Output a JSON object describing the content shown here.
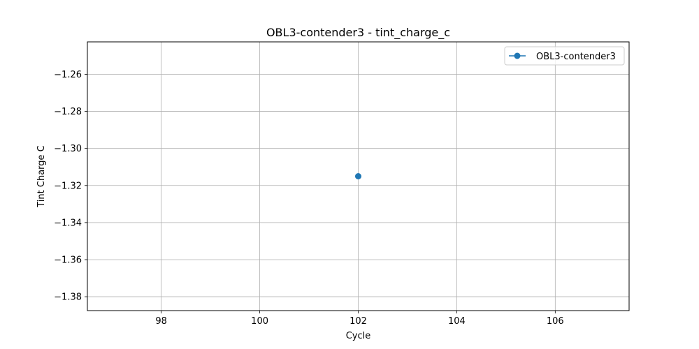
{
  "chart_data": {
    "type": "line",
    "title": "OBL3-contender3 - tint_charge_c",
    "xlabel": "Cycle",
    "ylabel": "Tint Charge C",
    "xlim": [
      96.5,
      107.5
    ],
    "ylim": [
      -1.3875,
      -1.2425
    ],
    "xticks": [
      98,
      100,
      102,
      104,
      106
    ],
    "xtick_labels": [
      "98",
      "100",
      "102",
      "104",
      "106"
    ],
    "yticks": [
      -1.26,
      -1.28,
      -1.3,
      -1.32,
      -1.34,
      -1.36,
      -1.38
    ],
    "ytick_labels": [
      "−1.26",
      "−1.28",
      "−1.30",
      "−1.32",
      "−1.34",
      "−1.36",
      "−1.38"
    ],
    "grid": true,
    "legend_position": "top-right",
    "series": [
      {
        "name": "OBL3-contender3",
        "color": "#1f77b4",
        "marker": "circle",
        "x": [
          102
        ],
        "y": [
          -1.315
        ]
      }
    ]
  }
}
